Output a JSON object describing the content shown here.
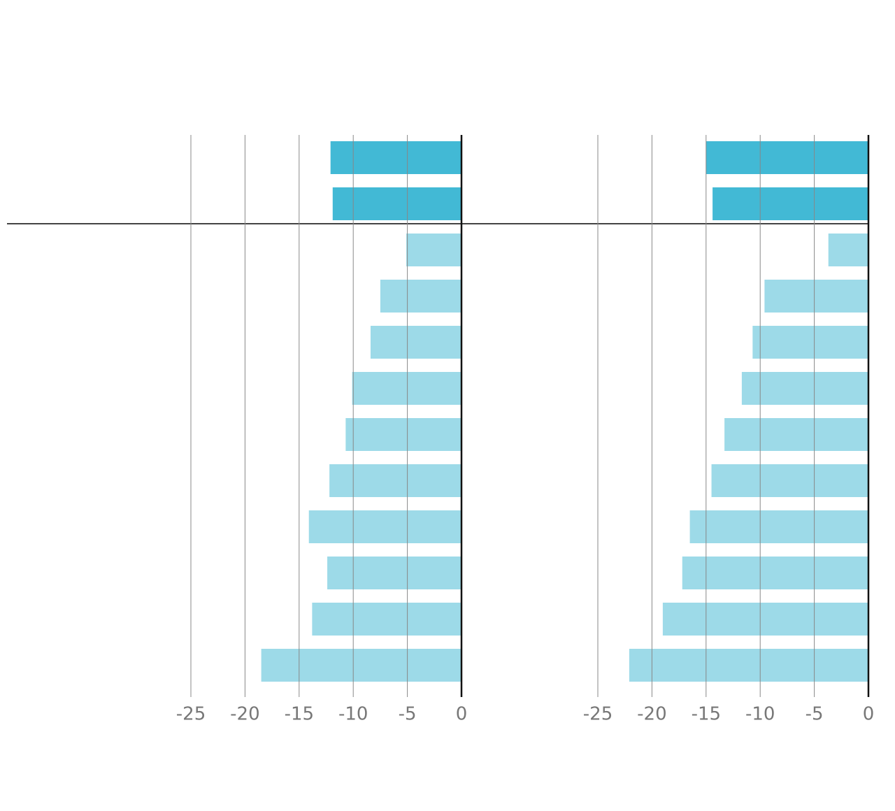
{
  "chart_data": [
    {
      "type": "bar",
      "orientation": "horizontal",
      "categories": [
        null,
        null,
        null,
        null,
        null,
        null,
        null,
        null,
        null,
        null,
        null,
        null
      ],
      "values": [
        -12.1,
        -11.9,
        -5.1,
        -7.5,
        -8.4,
        -10.1,
        -10.7,
        -12.2,
        -14.1,
        -12.4,
        -13.8,
        -18.5
      ],
      "colors": [
        "#42b9d5",
        "#42b9d5",
        "#9ddae8",
        "#9ddae8",
        "#9ddae8",
        "#9ddae8",
        "#9ddae8",
        "#9ddae8",
        "#9ddae8",
        "#9ddae8",
        "#9ddae8",
        "#9ddae8"
      ],
      "xlim": [
        -25,
        0
      ],
      "xticks": [
        -25,
        -20,
        -15,
        -10,
        -5,
        0
      ],
      "grid": true
    },
    {
      "type": "bar",
      "orientation": "horizontal",
      "categories": [
        null,
        null,
        null,
        null,
        null,
        null,
        null,
        null,
        null,
        null,
        null,
        null
      ],
      "values": [
        -15.0,
        -14.4,
        -3.7,
        -9.6,
        -10.7,
        -11.7,
        -13.3,
        -14.5,
        -16.5,
        -17.2,
        -19.0,
        -22.1
      ],
      "colors": [
        "#42b9d5",
        "#42b9d5",
        "#9ddae8",
        "#9ddae8",
        "#9ddae8",
        "#9ddae8",
        "#9ddae8",
        "#9ddae8",
        "#9ddae8",
        "#9ddae8",
        "#9ddae8",
        "#9ddae8"
      ],
      "xlim": [
        -25,
        0
      ],
      "xticks": [
        -25,
        -20,
        -15,
        -10,
        -5,
        0
      ],
      "grid": true
    }
  ]
}
